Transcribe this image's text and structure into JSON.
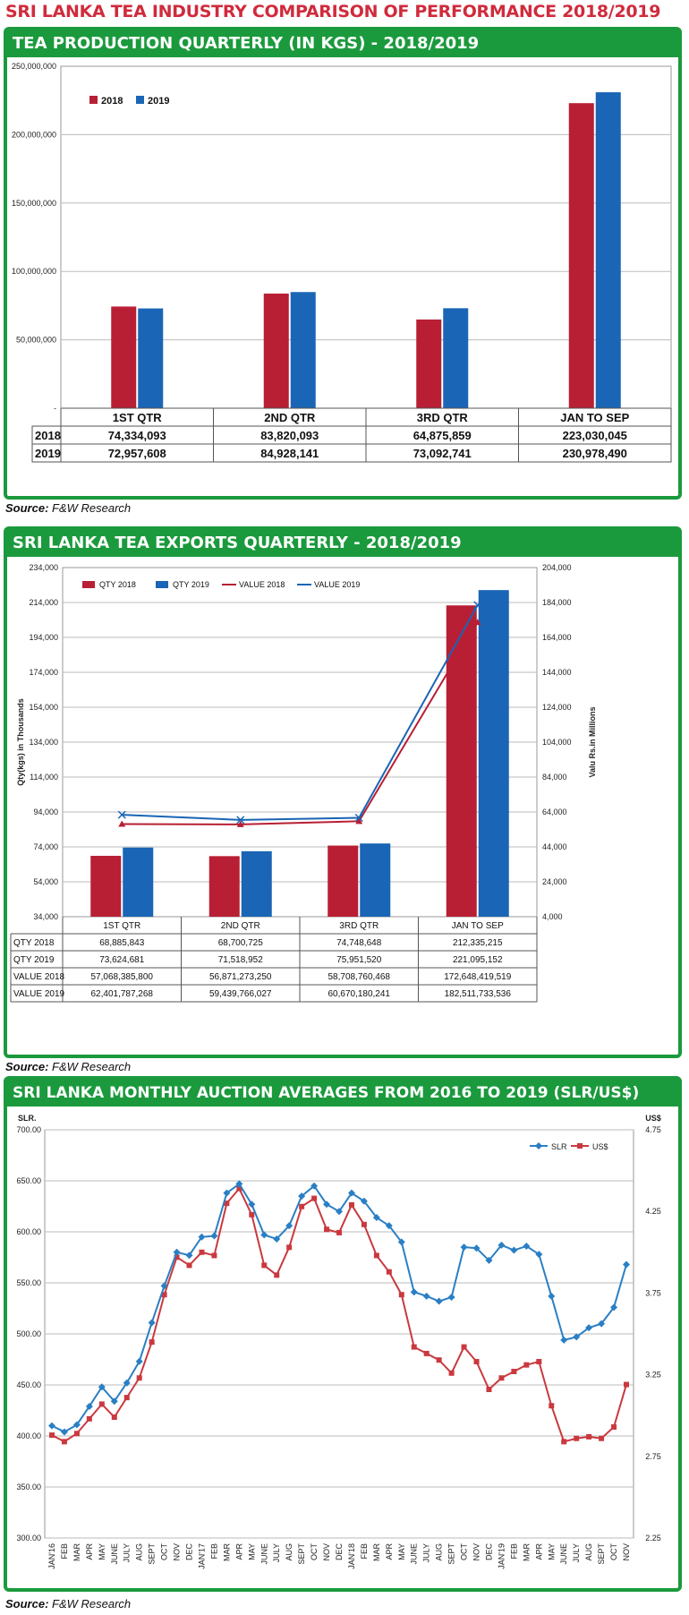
{
  "page_title": "SRI LANKA TEA INDUSTRY COMPARISON OF PERFORMANCE 2018/2019",
  "source_prefix": "Source:",
  "source_text": "F&W Research",
  "colors": {
    "green": "#1b9a3d",
    "red": "#c0253a",
    "blue": "#1f6fb8",
    "series2018": "#b81f34",
    "series2019": "#1a65b5"
  },
  "chart_data": [
    {
      "type": "bar",
      "title": "TEA PRODUCTION QUARTERLY (IN KGS) - 2018/2019",
      "categories": [
        "1ST QTR",
        "2ND QTR",
        "3RD QTR",
        "JAN TO SEP"
      ],
      "series": [
        {
          "name": "2018",
          "values": [
            74334093,
            83820093,
            64875859,
            223030045
          ],
          "labels": [
            "74,334,093",
            "83,820,093",
            "64,875,859",
            "223,030,045"
          ]
        },
        {
          "name": "2019",
          "values": [
            72957608,
            84928141,
            73092741,
            230978490
          ],
          "labels": [
            "72,957,608",
            "84,928,141",
            "73,092,741",
            "230,978,490"
          ]
        }
      ],
      "ylim": [
        0,
        250000000
      ],
      "yticks": [
        "-",
        "50,000,000",
        "100,000,000",
        "150,000,000",
        "200,000,000",
        "250,000,000"
      ],
      "legend": "top-left"
    },
    {
      "type": "bar",
      "title": "SRI LANKA TEA EXPORTS QUARTERLY - 2018/2019",
      "categories": [
        "1ST QTR",
        "2ND QTR",
        "3RD QTR",
        "JAN TO SEP"
      ],
      "ylabel": "Qty(kgs) in Thousands",
      "y2label": "Valu Rs.in Millions",
      "ylim": [
        34000,
        234000
      ],
      "y2lim": [
        4000,
        204000
      ],
      "yticks": [
        "34,000",
        "54,000",
        "74,000",
        "94,000",
        "114,000",
        "134,000",
        "154,000",
        "174,000",
        "194,000",
        "214,000",
        "234,000"
      ],
      "y2ticks": [
        "4,000",
        "24,000",
        "44,000",
        "64,000",
        "84,000",
        "104,000",
        "124,000",
        "144,000",
        "164,000",
        "184,000",
        "204,000"
      ],
      "series": [
        {
          "name": "QTY 2018",
          "kind": "bar",
          "values": [
            68885.843,
            68700.725,
            74748.648,
            212335.215
          ],
          "labels": [
            "68,885,843",
            "68,700,725",
            "74,748,648",
            "212,335,215"
          ]
        },
        {
          "name": "QTY 2019",
          "kind": "bar",
          "values": [
            73624.681,
            71518.952,
            75951.52,
            221095.152
          ],
          "labels": [
            "73,624,681",
            "71,518,952",
            "75,951,520",
            "221,095,152"
          ]
        },
        {
          "name": "VALUE 2018",
          "kind": "line",
          "axis": "right",
          "values": [
            57068.3858,
            56871.27325,
            58708.760468,
            172648.419519
          ],
          "labels": [
            "57,068,385,800",
            "56,871,273,250",
            "58,708,760,468",
            "172,648,419,519"
          ]
        },
        {
          "name": "VALUE 2019",
          "kind": "line",
          "axis": "right",
          "values": [
            62401.787268,
            59439.766027,
            60670.180241,
            182511.733536
          ],
          "labels": [
            "62,401,787,268",
            "59,439,766,027",
            "60,670,180,241",
            "182,511,733,536"
          ]
        }
      ],
      "legend": "top"
    },
    {
      "type": "line",
      "title": "SRI LANKA MONTHLY AUCTION AVERAGES FROM 2016 TO 2019 (SLR/US$)",
      "ylabel": "SLR.",
      "y2label": "US$",
      "ylim": [
        300,
        700
      ],
      "y2lim": [
        2.25,
        4.75
      ],
      "yticks": [
        "300.00",
        "350.00",
        "400.00",
        "450.00",
        "500.00",
        "550.00",
        "600.00",
        "650.00",
        "700.00"
      ],
      "y2ticks": [
        "2.25",
        "2.75",
        "3.25",
        "3.75",
        "4.25",
        "4.75"
      ],
      "x": [
        "JAN'16",
        "FEB",
        "MAR",
        "APR",
        "MAY",
        "JUNE",
        "JULY",
        "AUG",
        "SEPT",
        "OCT",
        "NOV",
        "DEC",
        "JAN'17",
        "FEB",
        "MAR",
        "APR",
        "MAY",
        "JUNE",
        "JULY",
        "AUG",
        "SEPT",
        "OCT",
        "NOV",
        "DEC",
        "JAN'18",
        "FEB",
        "MAR",
        "APR",
        "MAY",
        "JUNE",
        "JULY",
        "AUG",
        "SEPT",
        "OCT",
        "NOV",
        "DEC",
        "JAN'19",
        "FEB",
        "MAR",
        "APR",
        "MAY",
        "JUNE",
        "JULY",
        "AUG",
        "SEPT",
        "OCT",
        "NOV"
      ],
      "series": [
        {
          "name": "SLR",
          "axis": "left",
          "values": [
            410,
            404,
            411,
            429,
            448,
            434,
            452,
            473,
            511,
            547,
            580,
            577,
            595,
            596,
            638,
            647,
            627,
            597,
            593,
            606,
            635,
            645,
            627,
            620,
            638,
            630,
            614,
            606,
            590,
            541,
            537,
            532,
            536,
            585,
            584,
            572,
            587,
            582,
            586,
            578,
            537,
            494,
            497,
            506,
            510,
            526,
            568
          ]
        },
        {
          "name": "US$",
          "axis": "right",
          "values": [
            2.88,
            2.84,
            2.89,
            2.98,
            3.07,
            2.99,
            3.11,
            3.23,
            3.45,
            3.74,
            3.97,
            3.92,
            4.0,
            3.98,
            4.3,
            4.39,
            4.23,
            3.92,
            3.86,
            4.03,
            4.28,
            4.33,
            4.14,
            4.12,
            4.29,
            4.17,
            3.98,
            3.88,
            3.74,
            3.42,
            3.38,
            3.34,
            3.26,
            3.42,
            3.33,
            3.16,
            3.23,
            3.27,
            3.31,
            3.33,
            3.06,
            2.84,
            2.86,
            2.87,
            2.86,
            2.93,
            3.19
          ]
        }
      ],
      "legend": "top-right"
    }
  ],
  "row_labels_1": [
    "2018",
    "2019"
  ],
  "row_labels_2": [
    "QTY 2018",
    "QTY 2019",
    "VALUE 2018",
    "VALUE 2019"
  ]
}
